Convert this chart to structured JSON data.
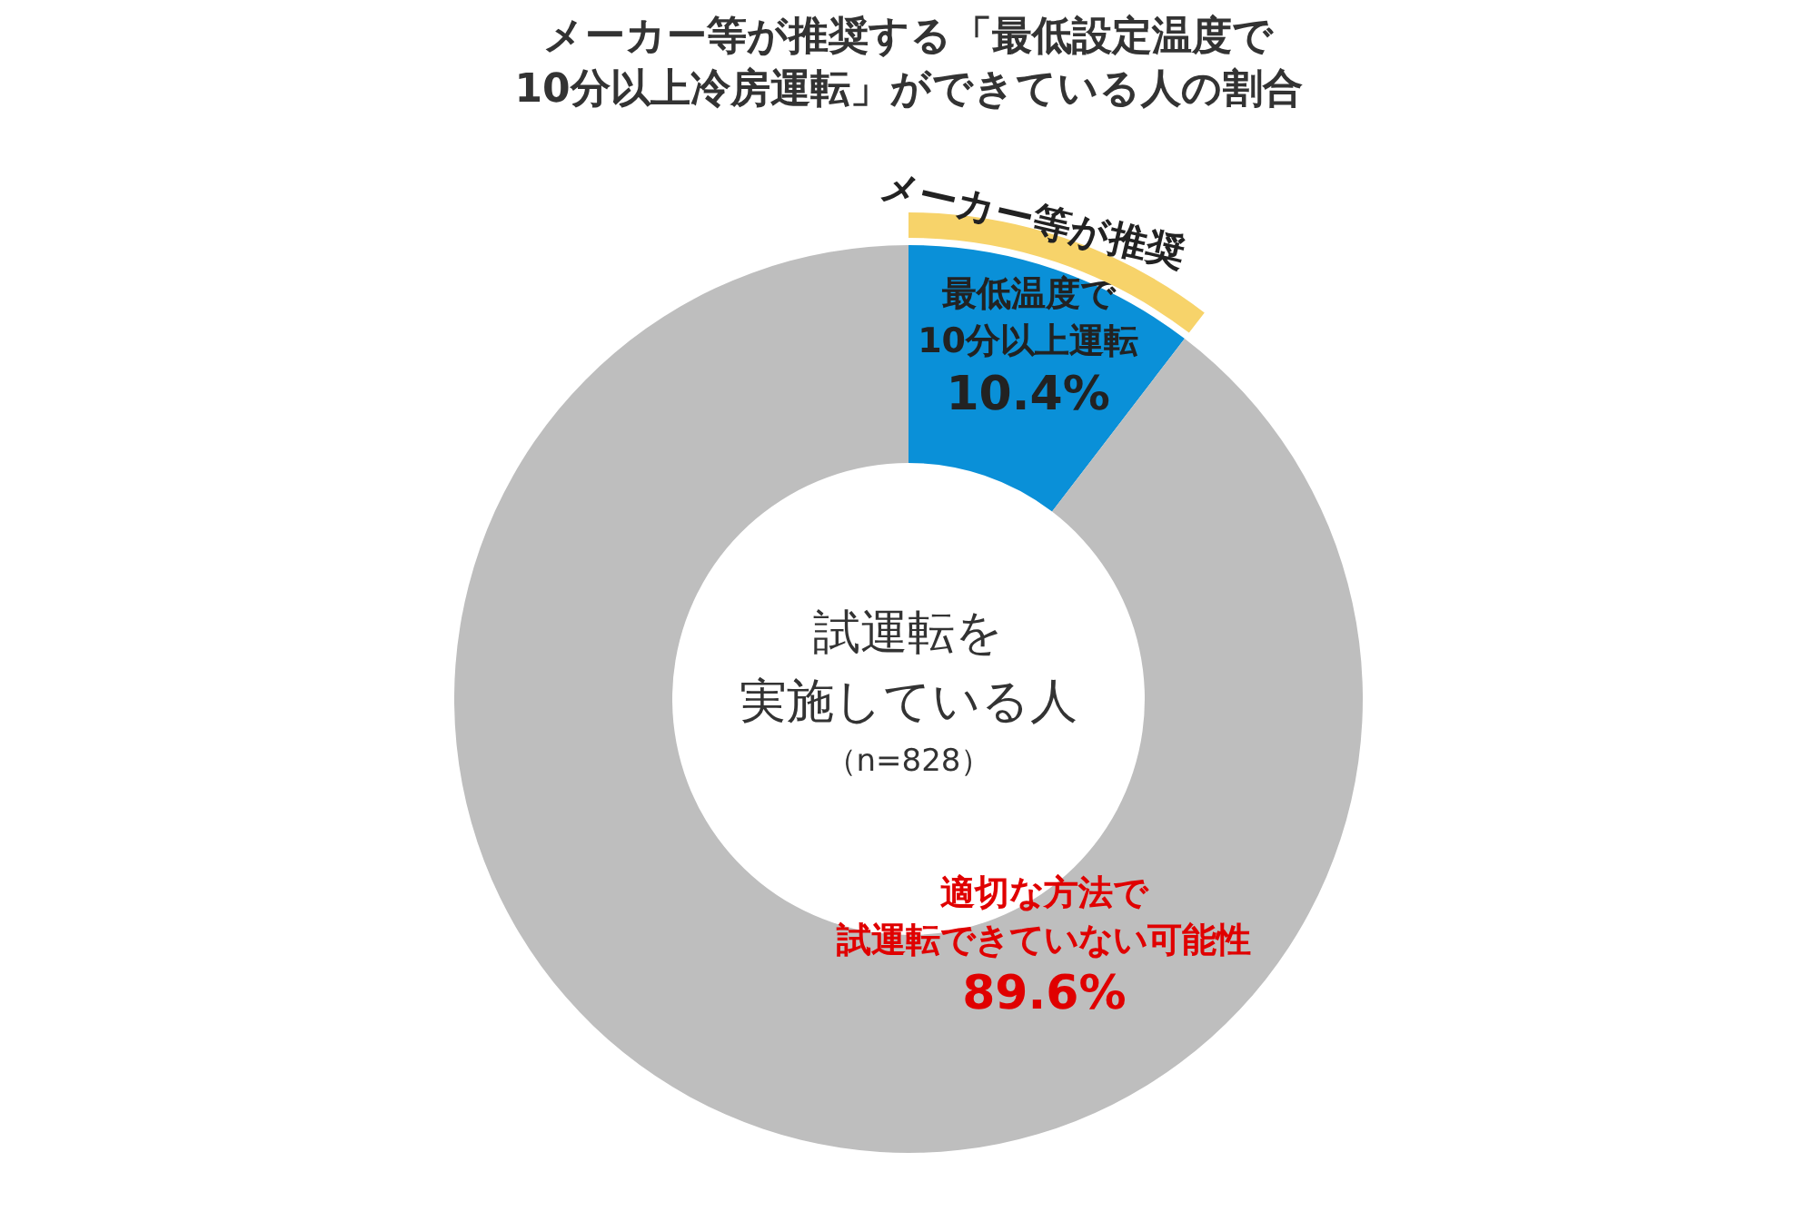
{
  "chart_data": {
    "type": "donut",
    "title": "メーカー等が推奨する「最低設定温度で10分以上冷房運転」ができている人の割合",
    "categories": [
      "最低温度で10分以上運転",
      "適切な方法で試運転できていない可能性"
    ],
    "values": [
      10.4,
      89.6
    ],
    "colors": [
      "#0a90d8",
      "#bebebe"
    ],
    "value_labels": [
      "10.4%",
      "89.6%"
    ],
    "annotations": [
      "メーカー等が推奨",
      "試運転を実施している人",
      "（n=828）"
    ],
    "legend": false
  }
}
